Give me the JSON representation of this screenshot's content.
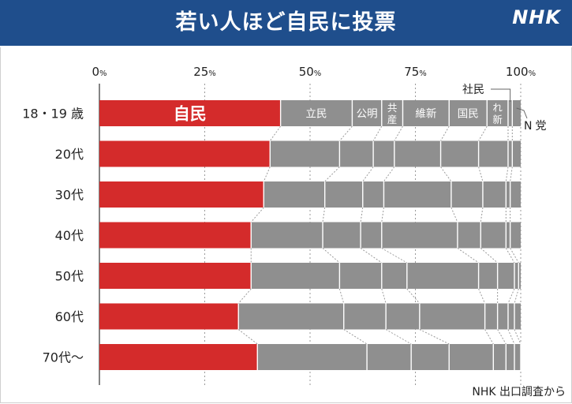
{
  "header": {
    "title": "若い人ほど自民に投票",
    "logo": "NHK",
    "colors": {
      "header_bg": "#1f4e8c",
      "title_text": "#ffffff"
    }
  },
  "source": "NHK 出口調査から",
  "chart_data": {
    "type": "bar",
    "orientation": "horizontal",
    "stacked": true,
    "title": "若い人ほど自民に投票",
    "xlim": [
      0,
      100
    ],
    "x_ticks": [
      {
        "value": 0,
        "num": "0",
        "unit": "%"
      },
      {
        "value": 25,
        "num": "25",
        "unit": "%"
      },
      {
        "value": 50,
        "num": "50",
        "unit": "%"
      },
      {
        "value": 75,
        "num": "75",
        "unit": "%"
      },
      {
        "value": 100,
        "num": "100",
        "unit": "%"
      }
    ],
    "grid": true,
    "categories": [
      "18・19 歳",
      "20代",
      "30代",
      "40代",
      "50代",
      "60代",
      "70代〜"
    ],
    "series": [
      {
        "name": "自民",
        "color": "#d42b2b",
        "values": [
          43.0,
          40.5,
          39.0,
          36.0,
          36.0,
          33.0,
          37.5
        ]
      },
      {
        "name": "立民",
        "color": "#8f8f8f",
        "values": [
          17.0,
          16.5,
          14.5,
          17.0,
          21.0,
          25.0,
          26.0
        ]
      },
      {
        "name": "公明",
        "color": "#8f8f8f",
        "values": [
          7.0,
          8.0,
          9.0,
          9.0,
          10.0,
          10.0,
          10.5
        ]
      },
      {
        "name": "共産",
        "color": "#8f8f8f",
        "values": [
          5.0,
          5.0,
          5.0,
          5.0,
          6.0,
          8.0,
          9.0
        ]
      },
      {
        "name": "維新",
        "color": "#8f8f8f",
        "values": [
          11.0,
          11.0,
          16.0,
          18.0,
          17.0,
          15.5,
          10.5
        ]
      },
      {
        "name": "国民",
        "color": "#8f8f8f",
        "values": [
          9.0,
          9.0,
          7.5,
          5.5,
          4.5,
          3.0,
          3.0
        ]
      },
      {
        "name": "れ新",
        "color": "#8f8f8f",
        "values": [
          5.0,
          7.0,
          5.5,
          6.0,
          4.0,
          2.5,
          2.0
        ]
      },
      {
        "name": "社民",
        "color": "#8f8f8f",
        "values": [
          1.0,
          1.0,
          1.0,
          1.0,
          1.0,
          1.5,
          1.5
        ]
      },
      {
        "name": "N党",
        "color": "#8f8f8f",
        "values": [
          2.0,
          2.0,
          2.5,
          2.5,
          0.5,
          1.5,
          0
        ]
      }
    ],
    "legend_labels": {
      "inside": [
        "自民",
        "立民",
        "公明",
        "共産",
        "維新",
        "国民",
        "れ新"
      ],
      "outside_top": "社民",
      "outside_right": "N党"
    }
  }
}
